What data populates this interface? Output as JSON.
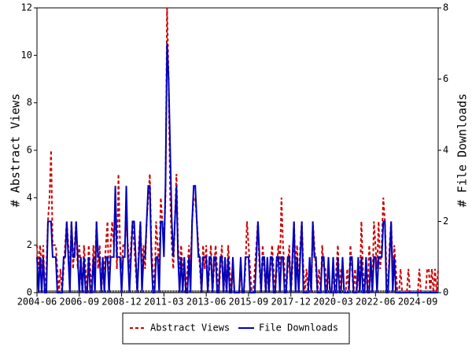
{
  "chart_data": {
    "type": "line",
    "y_label": "# Abstract Views",
    "y2_label": "# File Downloads",
    "x": [
      "2004-06",
      "2004-07",
      "2004-08",
      "2004-09",
      "2004-10",
      "2004-11",
      "2004-12",
      "2005-01",
      "2005-02",
      "2005-03",
      "2005-04",
      "2005-05",
      "2005-06",
      "2005-07",
      "2005-08",
      "2005-09",
      "2005-10",
      "2005-11",
      "2005-12",
      "2006-01",
      "2006-02",
      "2006-03",
      "2006-04",
      "2006-05",
      "2006-06",
      "2006-07",
      "2006-08",
      "2006-09",
      "2006-10",
      "2006-11",
      "2006-12",
      "2007-01",
      "2007-02",
      "2007-03",
      "2007-04",
      "2007-05",
      "2007-06",
      "2007-07",
      "2007-08",
      "2007-09",
      "2007-10",
      "2007-11",
      "2007-12",
      "2008-01",
      "2008-02",
      "2008-03",
      "2008-04",
      "2008-05",
      "2008-06",
      "2008-07",
      "2008-08",
      "2008-09",
      "2008-10",
      "2008-11",
      "2008-12",
      "2009-01",
      "2009-02",
      "2009-03",
      "2009-04",
      "2009-05",
      "2009-06",
      "2009-07",
      "2009-08",
      "2009-09",
      "2009-10",
      "2009-11",
      "2009-12",
      "2010-01",
      "2010-02",
      "2010-03",
      "2010-04",
      "2010-05",
      "2010-06",
      "2010-07",
      "2010-08",
      "2010-09",
      "2010-10",
      "2010-11",
      "2010-12",
      "2011-01",
      "2011-02",
      "2011-03",
      "2011-04",
      "2011-05",
      "2011-06",
      "2011-07",
      "2011-08",
      "2011-09",
      "2011-10",
      "2011-11",
      "2011-12",
      "2012-01",
      "2012-02",
      "2012-03",
      "2012-04",
      "2012-05",
      "2012-06",
      "2012-07",
      "2012-08",
      "2012-09",
      "2012-10",
      "2012-11",
      "2012-12",
      "2013-01",
      "2013-02",
      "2013-03",
      "2013-04",
      "2013-05",
      "2013-06",
      "2013-07",
      "2013-08",
      "2013-09",
      "2013-10",
      "2013-11",
      "2013-12",
      "2014-01",
      "2014-02",
      "2014-03",
      "2014-04",
      "2014-05",
      "2014-06",
      "2014-07",
      "2014-08",
      "2014-09",
      "2014-10",
      "2014-11",
      "2014-12",
      "2015-01",
      "2015-02",
      "2015-03",
      "2015-04",
      "2015-05",
      "2015-06",
      "2015-07",
      "2015-08",
      "2015-09",
      "2015-10",
      "2015-11",
      "2015-12",
      "2016-01",
      "2016-02",
      "2016-03",
      "2016-04",
      "2016-05",
      "2016-06",
      "2016-07",
      "2016-08",
      "2016-09",
      "2016-10",
      "2016-11",
      "2016-12",
      "2017-01",
      "2017-02",
      "2017-03",
      "2017-04",
      "2017-05",
      "2017-06",
      "2017-07",
      "2017-08",
      "2017-09",
      "2017-10",
      "2017-11",
      "2017-12",
      "2018-01",
      "2018-02",
      "2018-03",
      "2018-04",
      "2018-05",
      "2018-06",
      "2018-07",
      "2018-08",
      "2018-09",
      "2018-10",
      "2018-11",
      "2018-12",
      "2019-01",
      "2019-02",
      "2019-03",
      "2019-04",
      "2019-05",
      "2019-06",
      "2019-07",
      "2019-08",
      "2019-09",
      "2019-10",
      "2019-11",
      "2019-12",
      "2020-01",
      "2020-02",
      "2020-03",
      "2020-04",
      "2020-05",
      "2020-06",
      "2020-07",
      "2020-08",
      "2020-09",
      "2020-10",
      "2020-11",
      "2020-12",
      "2021-01",
      "2021-02",
      "2021-03",
      "2021-04",
      "2021-05",
      "2021-06",
      "2021-07",
      "2021-08",
      "2021-09",
      "2021-10",
      "2021-11",
      "2021-12",
      "2022-01",
      "2022-02",
      "2022-03",
      "2022-04",
      "2022-05",
      "2022-06",
      "2022-07",
      "2022-08",
      "2022-09",
      "2022-10",
      "2022-11",
      "2022-12",
      "2023-01",
      "2023-02",
      "2023-03",
      "2023-04",
      "2023-05",
      "2023-06",
      "2023-07",
      "2023-08",
      "2023-09",
      "2023-10",
      "2023-11",
      "2023-12",
      "2024-01",
      "2024-02",
      "2024-03",
      "2024-04",
      "2024-05",
      "2024-06",
      "2024-07",
      "2024-08",
      "2024-09",
      "2024-10",
      "2024-11",
      "2024-12",
      "2025-01",
      "2025-02",
      "2025-03",
      "2025-04",
      "2025-05",
      "2025-06",
      "2025-07",
      "2025-08",
      "2025-09",
      "2025-10"
    ],
    "series": [
      {
        "name": "Abstract Views",
        "color": "#cc0000",
        "dashed": true,
        "values": [
          2,
          1,
          2,
          1,
          2,
          0,
          1,
          3,
          4,
          6,
          2,
          2,
          2,
          1,
          0,
          1,
          0,
          1,
          2,
          3,
          2,
          1,
          3,
          1,
          2,
          3,
          1,
          2,
          1,
          0,
          2,
          1,
          0,
          2,
          1,
          0,
          2,
          1,
          3,
          1,
          2,
          0,
          1,
          1,
          2,
          3,
          0,
          2,
          3,
          2,
          4,
          1,
          5,
          2,
          1,
          2,
          2,
          3,
          2,
          1,
          2,
          3,
          2,
          1,
          0,
          2,
          3,
          1,
          2,
          1,
          3,
          4,
          5,
          2,
          1,
          0,
          3,
          2,
          1,
          4,
          3,
          2,
          4,
          12,
          9,
          4,
          2,
          1,
          3,
          5,
          2,
          1,
          2,
          1,
          1,
          0,
          1,
          2,
          1,
          3,
          4,
          4,
          3,
          2,
          1,
          0,
          2,
          1,
          2,
          0,
          1,
          2,
          0,
          1,
          2,
          1,
          0,
          1,
          2,
          0,
          1,
          0,
          2,
          1,
          0,
          1,
          0,
          0,
          0,
          0,
          1,
          0,
          0,
          1,
          3,
          2,
          1,
          0,
          0,
          1,
          2,
          3,
          1,
          0,
          2,
          1,
          0,
          1,
          0,
          1,
          2,
          1,
          0,
          1,
          2,
          1,
          4,
          2,
          1,
          0,
          1,
          2,
          0,
          1,
          3,
          1,
          2,
          0,
          2,
          3,
          1,
          0,
          1,
          0,
          1,
          0,
          3,
          2,
          1,
          0,
          1,
          0,
          2,
          1,
          1,
          0,
          1,
          0,
          0,
          1,
          0,
          1,
          2,
          0,
          1,
          1,
          0,
          0,
          1,
          0,
          2,
          1,
          0,
          1,
          0,
          1,
          0,
          3,
          1,
          0,
          1,
          0,
          2,
          1,
          0,
          3,
          2,
          1,
          3,
          1,
          2,
          4,
          3,
          1,
          0,
          2,
          3,
          1,
          2,
          1,
          0,
          0,
          1,
          0,
          0,
          0,
          0,
          1,
          0,
          0,
          0,
          0,
          0,
          0,
          1,
          0,
          0,
          0,
          0,
          1,
          1,
          0,
          1,
          0,
          1,
          0,
          1
        ]
      },
      {
        "name": "File Downloads",
        "color": "#0000bb",
        "dashed": false,
        "axis": "y2",
        "values": [
          1,
          0,
          1,
          0,
          1,
          0,
          0,
          2,
          2,
          2,
          1,
          1,
          1,
          0,
          0,
          0,
          0,
          1,
          1,
          2,
          1,
          0,
          2,
          1,
          1,
          2,
          1,
          0,
          1,
          0,
          1,
          0,
          0,
          1,
          0,
          0,
          1,
          0,
          2,
          1,
          1,
          0,
          1,
          0,
          1,
          1,
          0,
          1,
          1,
          1,
          3,
          1,
          1,
          1,
          0,
          1,
          1,
          3,
          1,
          0,
          1,
          2,
          2,
          1,
          0,
          1,
          2,
          0,
          1,
          1,
          2,
          3,
          3,
          1,
          0,
          0,
          1,
          1,
          0,
          2,
          2,
          1,
          3,
          7,
          6,
          4,
          2,
          1,
          2,
          3,
          1,
          0,
          1,
          0,
          1,
          0,
          0,
          1,
          0,
          2,
          3,
          3,
          2,
          1,
          1,
          0,
          1,
          1,
          1,
          0,
          1,
          1,
          0,
          1,
          1,
          0,
          0,
          1,
          1,
          0,
          1,
          0,
          1,
          0,
          0,
          1,
          0,
          0,
          0,
          0,
          1,
          0,
          0,
          1,
          1,
          1,
          0,
          0,
          0,
          0,
          1,
          2,
          1,
          0,
          1,
          1,
          0,
          1,
          0,
          1,
          1,
          0,
          0,
          1,
          1,
          0,
          1,
          1,
          0,
          0,
          1,
          1,
          0,
          1,
          2,
          0,
          1,
          0,
          1,
          2,
          0,
          0,
          0,
          0,
          1,
          0,
          2,
          1,
          1,
          0,
          0,
          0,
          1,
          1,
          0,
          0,
          1,
          0,
          0,
          1,
          0,
          0,
          1,
          0,
          0,
          1,
          0,
          0,
          0,
          0,
          1,
          1,
          0,
          0,
          0,
          1,
          0,
          1,
          0,
          0,
          1,
          0,
          0,
          1,
          0,
          1,
          1,
          0,
          1,
          1,
          1,
          2,
          2,
          0,
          0,
          1,
          2,
          0,
          1,
          0,
          0,
          0,
          0,
          0,
          0,
          0,
          0,
          0,
          0,
          0,
          0,
          0,
          0,
          0,
          0,
          0,
          0,
          0,
          0,
          0,
          0,
          0,
          0,
          0,
          0,
          0,
          0
        ]
      }
    ],
    "xlim": [
      "2004-06",
      "2025-10"
    ],
    "xticks": [
      "2004-06",
      "2006-09",
      "2008-12",
      "2011-03",
      "2013-06",
      "2015-09",
      "2017-12",
      "2020-03",
      "2022-06",
      "2024-09"
    ],
    "ylim": [
      0,
      12
    ],
    "yticks": [
      0,
      2,
      4,
      6,
      8,
      10,
      12
    ],
    "y2lim": [
      0,
      8
    ],
    "y2ticks": [
      0,
      2,
      4,
      6,
      8
    ],
    "legend": "bottom"
  }
}
